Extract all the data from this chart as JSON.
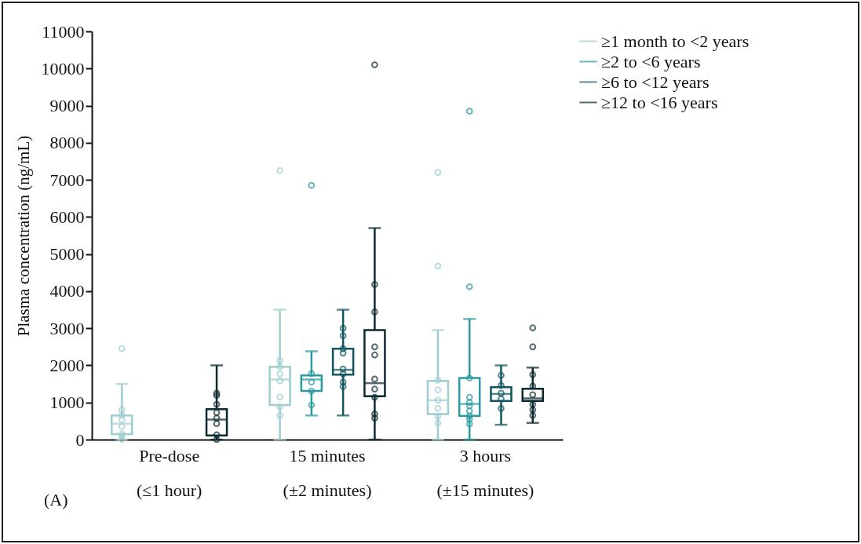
{
  "chart_data": {
    "type": "box",
    "ylabel": "Plasma concentration (ng/mL)",
    "categories": [
      "Pre-dose\n(≤1 hour)",
      "15 minutes\n(±2 minutes)",
      "3 hours\n(±15 minutes)"
    ],
    "ylim": [
      0,
      11000
    ],
    "yticks": [
      0,
      1000,
      2000,
      3000,
      4000,
      5000,
      6000,
      7000,
      8000,
      9000,
      10000,
      11000
    ],
    "grid": false,
    "legend": "top right",
    "marker": "circle",
    "annotations": [
      "(A)"
    ],
    "series": [
      {
        "name": "≥1 month to <2 years",
        "color": "#9fcdd0",
        "boxes": [
          {
            "low": 0,
            "q1": 150,
            "median": 430,
            "q3": 650,
            "high": 1500,
            "outliers": [
              2450,
              800,
              650,
              540,
              350,
              150,
              100,
              0
            ]
          },
          {
            "low": 0,
            "q1": 930,
            "median": 1620,
            "q3": 1960,
            "high": 3500,
            "outliers": [
              7250,
              2130,
              1960,
              1770,
              1580,
              1150,
              880,
              650
            ]
          },
          {
            "low": 0,
            "q1": 690,
            "median": 1060,
            "q3": 1580,
            "high": 2950,
            "outliers": [
              7200,
              4680,
              1600,
              1340,
              1060,
              840,
              630,
              450
            ]
          }
        ]
      },
      {
        "name": "≥2 to <6 years",
        "color": "#2a9aa0",
        "boxes": [
          null,
          {
            "low": 650,
            "q1": 1310,
            "median": 1620,
            "q3": 1730,
            "high": 2380,
            "outliers": [
              6850,
              1780,
              1550,
              1310,
              930
            ]
          },
          {
            "low": 0,
            "q1": 640,
            "median": 960,
            "q3": 1660,
            "high": 3250,
            "outliers": [
              8850,
              4120,
              1660,
              1140,
              1000,
              910,
              770,
              640,
              550,
              420
            ]
          }
        ]
      },
      {
        "name": "≥6 to <12 years",
        "color": "#105560",
        "boxes": [
          null,
          {
            "low": 650,
            "q1": 1750,
            "median": 1880,
            "q3": 2450,
            "high": 3500,
            "outliers": [
              3000,
              2800,
              2450,
              2330,
              1900,
              1770,
              1550,
              1430
            ]
          },
          {
            "low": 400,
            "q1": 1040,
            "median": 1230,
            "q3": 1410,
            "high": 2000,
            "outliers": [
              1730,
              1460,
              1250,
              1100,
              840
            ]
          }
        ]
      },
      {
        "name": "≥12 to <16 years",
        "color": "#0b2a30",
        "boxes": [
          {
            "low": 0,
            "q1": 110,
            "median": 540,
            "q3": 820,
            "high": 2000,
            "outliers": [
              1250,
              1190,
              950,
              730,
              580,
              430,
              130,
              0
            ]
          },
          {
            "low": 0,
            "q1": 1170,
            "median": 1520,
            "q3": 2950,
            "high": 5700,
            "outliers": [
              10100,
              4180,
              3440,
              2500,
              2280,
              1630,
              1360,
              1140,
              690,
              580
            ]
          },
          {
            "low": 450,
            "q1": 1040,
            "median": 1110,
            "q3": 1370,
            "high": 1940,
            "outliers": [
              3010,
              2500,
              1750,
              1440,
              1210,
              950,
              800,
              650
            ]
          }
        ]
      }
    ]
  }
}
